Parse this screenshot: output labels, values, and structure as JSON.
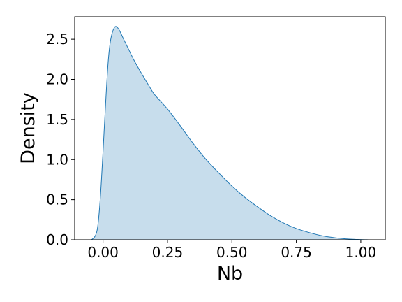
{
  "chart_data": {
    "type": "area",
    "title": "",
    "xlabel": "Nb",
    "ylabel": "Density",
    "xlim": [
      -0.11,
      1.095
    ],
    "ylim": [
      0.0,
      2.78
    ],
    "xticks": [
      0.0,
      0.25,
      0.5,
      0.75,
      1.0
    ],
    "xtick_labels": [
      "0.00",
      "0.25",
      "0.50",
      "0.75",
      "1.00"
    ],
    "yticks": [
      0.0,
      0.5,
      1.0,
      1.5,
      2.0,
      2.5
    ],
    "ytick_labels": [
      "0.0",
      "0.5",
      "1.0",
      "1.5",
      "2.0",
      "2.5"
    ],
    "grid": false,
    "series": [
      {
        "line_color": "#1f77b4",
        "fill_color": "#1f77b4",
        "fill_opacity": 0.25,
        "x": [
          -0.045,
          -0.03,
          -0.02,
          -0.01,
          0.0,
          0.01,
          0.02,
          0.03,
          0.045,
          0.06,
          0.08,
          0.1,
          0.12,
          0.15,
          0.18,
          0.2,
          0.25,
          0.3,
          0.35,
          0.4,
          0.45,
          0.5,
          0.55,
          0.6,
          0.65,
          0.7,
          0.75,
          0.8,
          0.85,
          0.9,
          0.95,
          1.0,
          1.03
        ],
        "y": [
          0.0,
          0.05,
          0.18,
          0.55,
          1.1,
          1.7,
          2.22,
          2.5,
          2.65,
          2.63,
          2.5,
          2.37,
          2.24,
          2.07,
          1.91,
          1.81,
          1.63,
          1.42,
          1.2,
          1.0,
          0.83,
          0.67,
          0.53,
          0.41,
          0.3,
          0.21,
          0.14,
          0.09,
          0.05,
          0.025,
          0.01,
          0.003,
          0.0
        ]
      }
    ]
  }
}
